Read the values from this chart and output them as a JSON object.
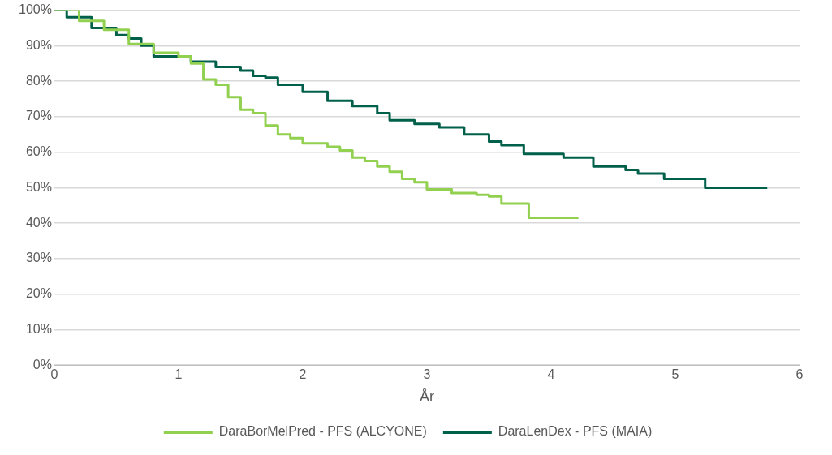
{
  "chart_data": {
    "type": "step",
    "xlabel": "År",
    "xlim": [
      0,
      6
    ],
    "xticks": [
      0,
      1,
      2,
      3,
      4,
      5,
      6
    ],
    "ylim": [
      0,
      100
    ],
    "yticks": [
      {
        "value": 0,
        "label": "0%"
      },
      {
        "value": 10,
        "label": "10%"
      },
      {
        "value": 20,
        "label": "20%"
      },
      {
        "value": 30,
        "label": "30%"
      },
      {
        "value": 40,
        "label": "40%"
      },
      {
        "value": 50,
        "label": "50%"
      },
      {
        "value": 60,
        "label": "60%"
      },
      {
        "value": 70,
        "label": "70%"
      },
      {
        "value": 80,
        "label": "80%"
      },
      {
        "value": 90,
        "label": "90%"
      },
      {
        "value": 100,
        "label": "100%"
      }
    ],
    "grid": "y",
    "legend": "bottom",
    "marker": "none",
    "line_style": "solid",
    "series": [
      {
        "name": "DaraBorMelPred - PFS (ALCYONE)",
        "color": "#92d050",
        "x": [
          0,
          0.2,
          0.4,
          0.6,
          0.8,
          1.0,
          1.1,
          1.2,
          1.3,
          1.4,
          1.5,
          1.6,
          1.7,
          1.8,
          1.9,
          2.0,
          2.2,
          2.3,
          2.4,
          2.5,
          2.6,
          2.7,
          2.8,
          2.9,
          3.0,
          3.2,
          3.4,
          3.5,
          3.6,
          3.82,
          4.22
        ],
        "values": [
          100,
          97,
          94.5,
          90.5,
          88,
          87,
          85,
          80.5,
          79,
          75.5,
          72,
          71,
          67.5,
          65,
          64,
          62.5,
          61.5,
          60.5,
          58.5,
          57.5,
          56,
          54.5,
          52.5,
          51.5,
          49.5,
          48.5,
          48,
          47.5,
          45.5,
          41.5,
          41.5
        ]
      },
      {
        "name": "DaraLenDex - PFS (MAIA)",
        "color": "#00604a",
        "x": [
          0,
          0.1,
          0.3,
          0.5,
          0.6,
          0.7,
          0.8,
          1.0,
          1.1,
          1.3,
          1.5,
          1.6,
          1.7,
          1.8,
          2.0,
          2.2,
          2.4,
          2.6,
          2.7,
          2.9,
          3.1,
          3.3,
          3.5,
          3.6,
          3.78,
          4.03,
          4.1,
          4.34,
          4.5,
          4.6,
          4.7,
          4.91,
          5.24,
          5.74
        ],
        "values": [
          100,
          98,
          95,
          93,
          92,
          90,
          87,
          87,
          85.5,
          84,
          83,
          81.5,
          81,
          79,
          77,
          74.5,
          73,
          71,
          69,
          68,
          67,
          65,
          63,
          62,
          59.5,
          59.5,
          58.5,
          56,
          56,
          55,
          54,
          52.5,
          50,
          50
        ]
      }
    ]
  }
}
